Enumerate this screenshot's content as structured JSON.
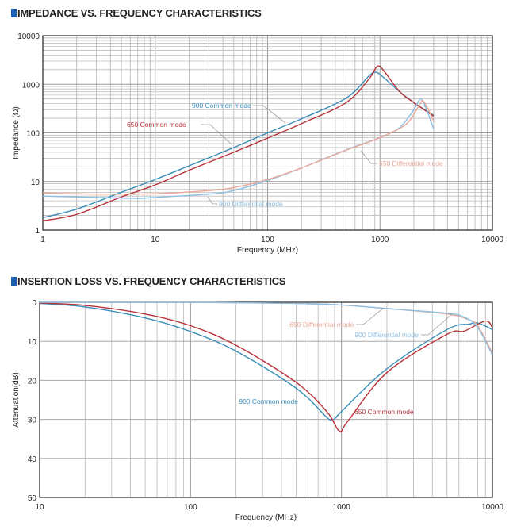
{
  "chart_data": [
    {
      "type": "line",
      "title": "IMPEDANCE VS. FREQUENCY CHARACTERISTICS",
      "xlabel": "Frequency (MHz)",
      "ylabel": "Impedance (Ω)",
      "xscale": "log",
      "yscale": "log",
      "xlim": [
        1,
        10000
      ],
      "ylim": [
        1,
        10000
      ],
      "xticks": [
        "1",
        "10",
        "100",
        "1000",
        "10000"
      ],
      "yticks": [
        "1",
        "10",
        "100",
        "1000",
        "10000"
      ],
      "grid": true,
      "series": [
        {
          "name": "900 Common mode",
          "color": "#3a8dba",
          "points": [
            [
              1,
              1.8
            ],
            [
              2,
              2.7
            ],
            [
              5,
              6
            ],
            [
              10,
              11
            ],
            [
              20,
              21
            ],
            [
              50,
              50
            ],
            [
              100,
              100
            ],
            [
              200,
              195
            ],
            [
              500,
              520
            ],
            [
              800,
              1500
            ],
            [
              900,
              1750
            ],
            [
              1000,
              1600
            ],
            [
              1500,
              700
            ],
            [
              2000,
              420
            ],
            [
              3000,
              230
            ]
          ]
        },
        {
          "name": "650 Common mode",
          "color": "#b8323a",
          "points": [
            [
              1,
              1.55
            ],
            [
              2,
              2.1
            ],
            [
              5,
              4.8
            ],
            [
              10,
              8.5
            ],
            [
              20,
              17
            ],
            [
              50,
              40
            ],
            [
              100,
              78
            ],
            [
              200,
              155
            ],
            [
              500,
              420
            ],
            [
              800,
              1300
            ],
            [
              950,
              2350
            ],
            [
              1100,
              1800
            ],
            [
              1500,
              700
            ],
            [
              2000,
              420
            ],
            [
              3000,
              220
            ]
          ]
        },
        {
          "name": "900 Differential mode",
          "color": "#8dbfe2",
          "points": [
            [
              1,
              5
            ],
            [
              3,
              4.7
            ],
            [
              7,
              4.5
            ],
            [
              10,
              4.7
            ],
            [
              30,
              5.5
            ],
            [
              50,
              6.5
            ],
            [
              100,
              10.5
            ],
            [
              200,
              19
            ],
            [
              500,
              45
            ],
            [
              1000,
              80
            ],
            [
              1500,
              130
            ],
            [
              2000,
              300
            ],
            [
              2300,
              500
            ],
            [
              2600,
              300
            ],
            [
              3000,
              120
            ]
          ]
        },
        {
          "name": "650 Differential mode",
          "color": "#e9a898",
          "points": [
            [
              1,
              5.8
            ],
            [
              3,
              5.5
            ],
            [
              10,
              5.6
            ],
            [
              30,
              6.5
            ],
            [
              50,
              7.5
            ],
            [
              100,
              11
            ],
            [
              200,
              19
            ],
            [
              500,
              44
            ],
            [
              1000,
              80
            ],
            [
              1700,
              150
            ],
            [
              2200,
              350
            ],
            [
              2400,
              460
            ],
            [
              2700,
              300
            ],
            [
              3000,
              170
            ]
          ]
        }
      ]
    },
    {
      "type": "line",
      "title": "INSERTION LOSS VS. FREQUENCY CHARACTERISTICS",
      "xlabel": "Frequency (MHz)",
      "ylabel": "Attenuation(dB)",
      "xscale": "log",
      "yscale": "linear",
      "yinverted": true,
      "xlim": [
        10,
        10000
      ],
      "ylim": [
        0,
        50
      ],
      "xticks": [
        "10",
        "100",
        "1000",
        "10000"
      ],
      "yticks": [
        "0",
        "10",
        "20",
        "30",
        "40",
        "50"
      ],
      "grid": true,
      "series": [
        {
          "name": "900 Common mode",
          "color": "#3a8dba",
          "points": [
            [
              10,
              0.3
            ],
            [
              20,
              1.2
            ],
            [
              50,
              4
            ],
            [
              100,
              7.5
            ],
            [
              200,
              12.5
            ],
            [
              500,
              22
            ],
            [
              800,
              29.5
            ],
            [
              860,
              30
            ],
            [
              920,
              29.6
            ],
            [
              1000,
              28
            ],
            [
              2000,
              17
            ],
            [
              5000,
              7
            ],
            [
              7000,
              5.6
            ],
            [
              8000,
              5.3
            ],
            [
              10000,
              7
            ]
          ]
        },
        {
          "name": "650 Common mode",
          "color": "#b8323a",
          "points": [
            [
              10,
              0.2
            ],
            [
              20,
              0.8
            ],
            [
              50,
              3
            ],
            [
              100,
              6
            ],
            [
              200,
              11
            ],
            [
              500,
              20.5
            ],
            [
              800,
              28
            ],
            [
              970,
              33
            ],
            [
              1100,
              30.5
            ],
            [
              2000,
              18
            ],
            [
              5000,
              8.2
            ],
            [
              6500,
              7.4
            ],
            [
              9000,
              4.8
            ],
            [
              10000,
              6.5
            ]
          ]
        },
        {
          "name": "650 Differential mode",
          "color": "#e9a898",
          "points": [
            [
              10,
              0
            ],
            [
              100,
              0
            ],
            [
              500,
              0.3
            ],
            [
              1000,
              0.7
            ],
            [
              2000,
              1.6
            ],
            [
              5000,
              3
            ],
            [
              7000,
              4.5
            ],
            [
              8000,
              6
            ],
            [
              10000,
              13
            ]
          ]
        },
        {
          "name": "900 Differential mode",
          "color": "#8dbfe2",
          "points": [
            [
              10,
              0
            ],
            [
              100,
              0
            ],
            [
              500,
              0.3
            ],
            [
              1000,
              0.7
            ],
            [
              2000,
              1.6
            ],
            [
              5000,
              2.8
            ],
            [
              6500,
              3.8
            ],
            [
              8000,
              6.5
            ],
            [
              10000,
              13.5
            ]
          ]
        }
      ]
    }
  ]
}
